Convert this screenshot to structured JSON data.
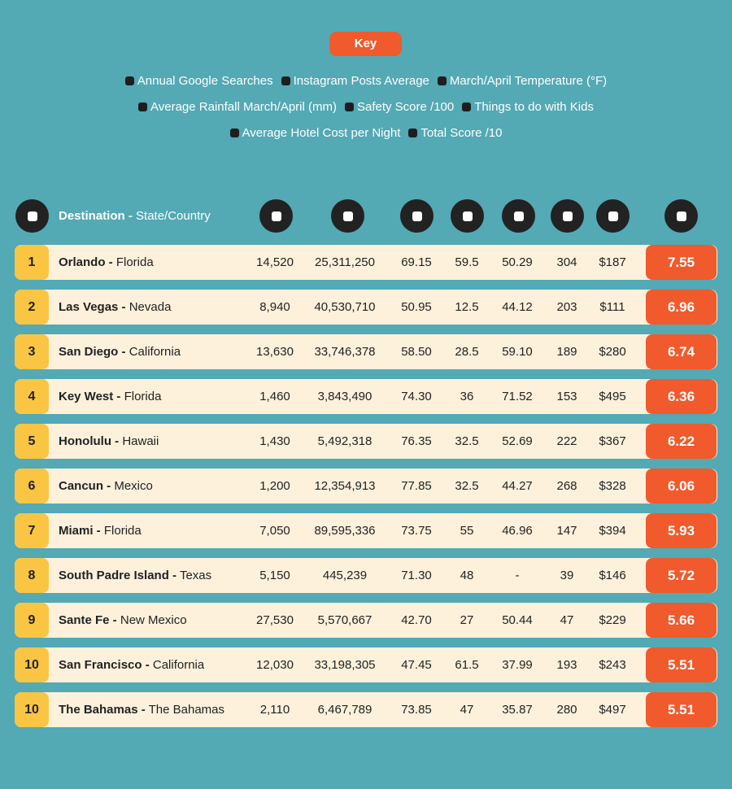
{
  "key": {
    "title": "Key",
    "items": [
      "Annual Google Searches",
      "Instagram Posts Average",
      "March/April Temperature (°F)",
      "Average Rainfall March/April (mm)",
      "Safety Score /100",
      "Things to do with Kids",
      "Average Hotel Cost per Night",
      "Total Score /10"
    ]
  },
  "table": {
    "header": {
      "destination": "Destination -",
      "state": "State/Country"
    },
    "rows": [
      [
        "1",
        "Orlando -",
        "Florida",
        "14,520",
        "25,311,250",
        "69.15",
        "59.5",
        "50.29",
        "304",
        "$187",
        "7.55"
      ],
      [
        "2",
        "Las Vegas -",
        "Nevada",
        "8,940",
        "40,530,710",
        "50.95",
        "12.5",
        "44.12",
        "203",
        "$111",
        "6.96"
      ],
      [
        "3",
        "San Diego -",
        "California",
        "13,630",
        "33,746,378",
        "58.50",
        "28.5",
        "59.10",
        "189",
        "$280",
        "6.74"
      ],
      [
        "4",
        "Key West -",
        "Florida",
        "1,460",
        "3,843,490",
        "74.30",
        "36",
        "71.52",
        "153",
        "$495",
        "6.36"
      ],
      [
        "5",
        "Honolulu -",
        "Hawaii",
        "1,430",
        "5,492,318",
        "76.35",
        "32.5",
        "52.69",
        "222",
        "$367",
        "6.22"
      ],
      [
        "6",
        "Cancun -",
        "Mexico",
        "1,200",
        "12,354,913",
        "77.85",
        "32.5",
        "44.27",
        "268",
        "$328",
        "6.06"
      ],
      [
        "7",
        "Miami -",
        "Florida",
        "7,050",
        "89,595,336",
        "73.75",
        "55",
        "46.96",
        "147",
        "$394",
        "5.93"
      ],
      [
        "8",
        "South Padre Island -",
        "Texas",
        "5,150",
        "445,239",
        "71.30",
        "48",
        "-",
        "39",
        "$146",
        "5.72"
      ],
      [
        "9",
        "Sante Fe -",
        "New Mexico",
        "27,530",
        "5,570,667",
        "42.70",
        "27",
        "50.44",
        "47",
        "$229",
        "5.66"
      ],
      [
        "10",
        "San Francisco -",
        "California",
        "12,030",
        "33,198,305",
        "47.45",
        "61.5",
        "37.99",
        "193",
        "$243",
        "5.51"
      ],
      [
        "10",
        "The Bahamas -",
        "The Bahamas",
        "2,110",
        "6,467,789",
        "73.85",
        "47",
        "35.87",
        "280",
        "$497",
        "5.51"
      ]
    ]
  }
}
